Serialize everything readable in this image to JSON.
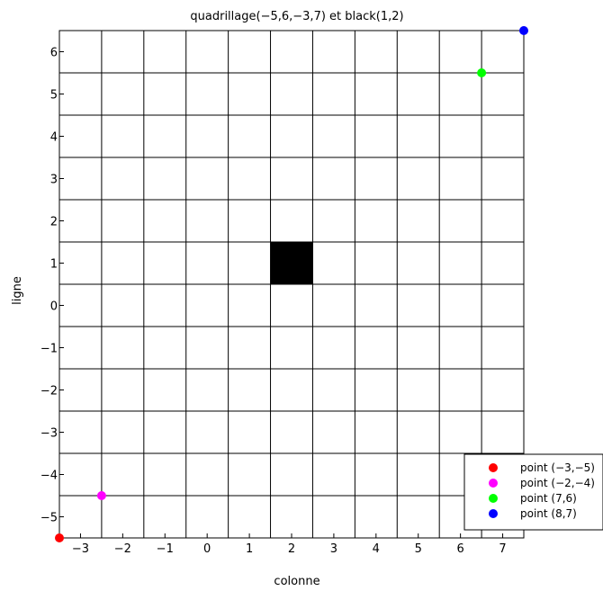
{
  "chart_data": {
    "type": "scatter",
    "title": "quadrillage(−5,6,−3,7) et black(1,2)",
    "xlabel": "colonne",
    "ylabel": "ligne",
    "xlim": [
      -3.5,
      7.5
    ],
    "ylim": [
      -5.5,
      6.5
    ],
    "x_ticks": [
      -3,
      -2,
      -1,
      0,
      1,
      2,
      3,
      4,
      5,
      6,
      7
    ],
    "x_tick_labels": [
      "−3",
      "−2",
      "−1",
      "0",
      "1",
      "2",
      "3",
      "4",
      "5",
      "6",
      "7"
    ],
    "y_ticks": [
      6,
      5,
      4,
      3,
      2,
      1,
      0,
      -1,
      -2,
      -3,
      -4,
      -5
    ],
    "y_tick_labels": [
      "6",
      "5",
      "4",
      "3",
      "2",
      "1",
      "0",
      "−1",
      "−2",
      "−3",
      "−4",
      "−5"
    ],
    "grid": true,
    "black_cell": {
      "x": 2,
      "y": 1,
      "color": "#000000"
    },
    "series": [
      {
        "name": "point (−3,−5)",
        "x": -3.5,
        "y": -5.5,
        "color": "#ff0000"
      },
      {
        "name": "point (−2,−4)",
        "x": -2.5,
        "y": -4.5,
        "color": "#ff00ff"
      },
      {
        "name": "point (7,6)",
        "x": 6.5,
        "y": 5.5,
        "color": "#00ff00"
      },
      {
        "name": "point (8,7)",
        "x": 7.5,
        "y": 6.5,
        "color": "#0000ff"
      }
    ],
    "legend_position": "bottom-right"
  }
}
